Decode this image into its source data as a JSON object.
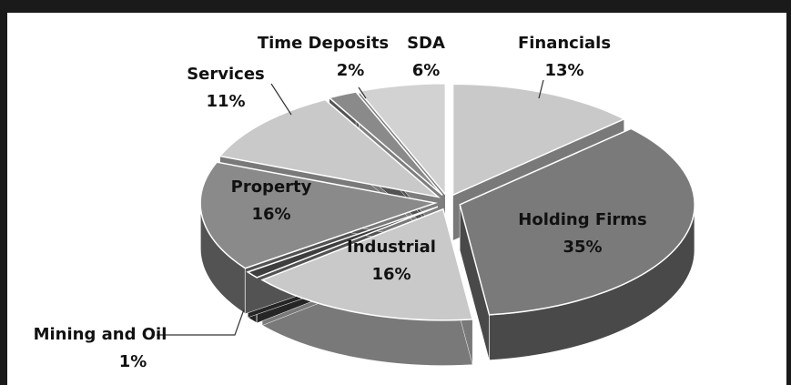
{
  "chart_data": {
    "type": "pie3d",
    "categories": [
      "Financials",
      "Holding Firms",
      "Industrial",
      "Mining and Oil",
      "Property",
      "Services",
      "Time Deposits",
      "SDA"
    ],
    "values": [
      13,
      35,
      16,
      1,
      16,
      11,
      2,
      6
    ],
    "value_labels": [
      "13%",
      "35%",
      "16%",
      "1%",
      "16%",
      "11%",
      "2%",
      "6%"
    ],
    "colors": [
      "#c9c9c9",
      "#7a7a7a",
      "#c9c9c9",
      "#3e3e3e",
      "#8a8a8a",
      "#c9c9c9",
      "#8a8a8a",
      "#d2d2d2"
    ]
  }
}
